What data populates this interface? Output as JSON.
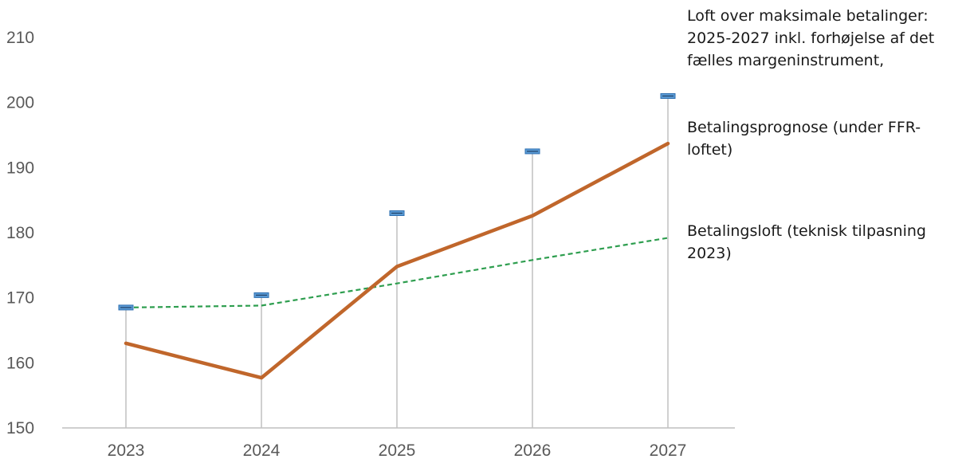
{
  "chart_data": {
    "type": "line",
    "categories": [
      "2023",
      "2024",
      "2025",
      "2026",
      "2027"
    ],
    "ylim": [
      150,
      210
    ],
    "yticks": [
      150,
      160,
      170,
      180,
      190,
      200,
      210
    ],
    "grid": false,
    "legend_position": "right",
    "series": [
      {
        "name": "Loft over maksimale betalinger: 2025-2027 inkl. forhøjelse af det fælles margeninstrument,",
        "kind": "marker",
        "color": "#5b9bd5",
        "values": [
          168.5,
          170.4,
          183.0,
          192.5,
          201.0
        ]
      },
      {
        "name": "Betalingsprognose (under FFR-loftet)",
        "kind": "line",
        "color": "#c0662b",
        "values": [
          163.0,
          157.7,
          174.8,
          182.6,
          193.7
        ]
      },
      {
        "name": "Betalingsloft (teknisk tilpasning 2023)",
        "kind": "dashed",
        "color": "#2e9e4f",
        "values": [
          168.5,
          168.8,
          172.2,
          175.8,
          179.2
        ]
      }
    ]
  }
}
